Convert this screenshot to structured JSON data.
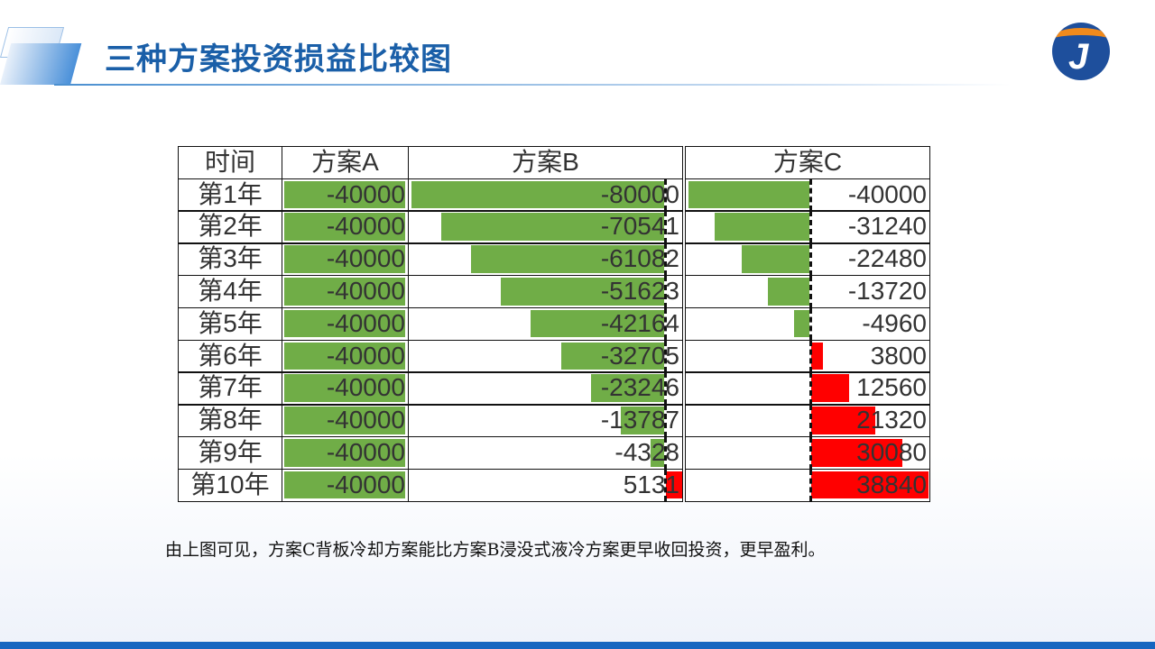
{
  "header": {
    "title": "三种方案投资损益比较图"
  },
  "logo": {
    "letter": "J"
  },
  "note": "由上图可见，方案C背板冷却方案能比方案B浸没式液冷方案更早收回投资，更早盈利。",
  "colors": {
    "negative": "#70ad47",
    "positive": "#ff0000",
    "title": "#1a5fa8"
  },
  "chart_data": {
    "type": "table",
    "columns": [
      "时间",
      "方案A",
      "方案B",
      "方案C"
    ],
    "rows": [
      "第1年",
      "第2年",
      "第3年",
      "第4年",
      "第5年",
      "第6年",
      "第7年",
      "第8年",
      "第9年",
      "第10年"
    ],
    "series": [
      {
        "name": "方案A",
        "values": [
          -40000,
          -40000,
          -40000,
          -40000,
          -40000,
          -40000,
          -40000,
          -40000,
          -40000,
          -40000
        ]
      },
      {
        "name": "方案B",
        "values": [
          -80000,
          -70541,
          -61082,
          -51623,
          -42164,
          -32705,
          -23246,
          -13787,
          -4328,
          5131
        ]
      },
      {
        "name": "方案C",
        "values": [
          -40000,
          -31240,
          -22480,
          -13720,
          -4960,
          3800,
          12560,
          21320,
          30080,
          38840
        ]
      }
    ]
  }
}
